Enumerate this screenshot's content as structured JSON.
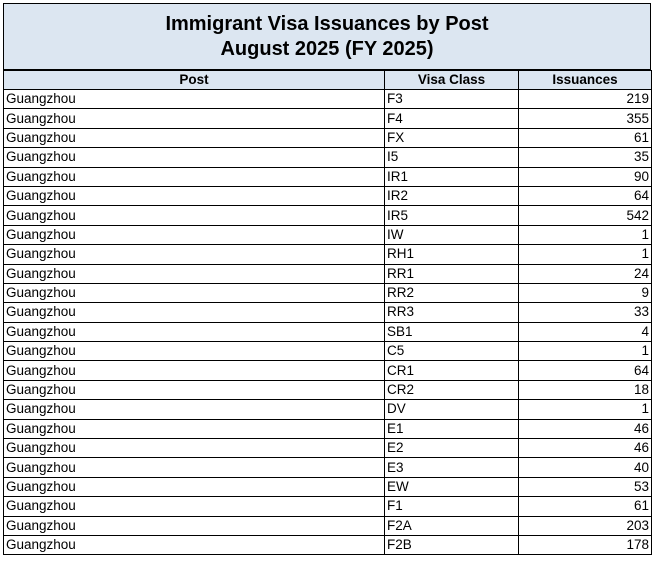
{
  "header": {
    "title": "Immigrant Visa Issuances by Post",
    "subtitle": "August 2025 (FY 2025)"
  },
  "table": {
    "columns": [
      "Post",
      "Visa Class",
      "Issuances"
    ],
    "rows": [
      [
        "Guangzhou",
        "F3",
        219
      ],
      [
        "Guangzhou",
        "F4",
        355
      ],
      [
        "Guangzhou",
        "FX",
        61
      ],
      [
        "Guangzhou",
        "I5",
        35
      ],
      [
        "Guangzhou",
        "IR1",
        90
      ],
      [
        "Guangzhou",
        "IR2",
        64
      ],
      [
        "Guangzhou",
        "IR5",
        542
      ],
      [
        "Guangzhou",
        "IW",
        1
      ],
      [
        "Guangzhou",
        "RH1",
        1
      ],
      [
        "Guangzhou",
        "RR1",
        24
      ],
      [
        "Guangzhou",
        "RR2",
        9
      ],
      [
        "Guangzhou",
        "RR3",
        33
      ],
      [
        "Guangzhou",
        "SB1",
        4
      ],
      [
        "Guangzhou",
        "C5",
        1
      ],
      [
        "Guangzhou",
        "CR1",
        64
      ],
      [
        "Guangzhou",
        "CR2",
        18
      ],
      [
        "Guangzhou",
        "DV",
        1
      ],
      [
        "Guangzhou",
        "E1",
        46
      ],
      [
        "Guangzhou",
        "E2",
        46
      ],
      [
        "Guangzhou",
        "E3",
        40
      ],
      [
        "Guangzhou",
        "EW",
        53
      ],
      [
        "Guangzhou",
        "F1",
        61
      ],
      [
        "Guangzhou",
        "F2A",
        203
      ],
      [
        "Guangzhou",
        "F2B",
        178
      ]
    ]
  }
}
